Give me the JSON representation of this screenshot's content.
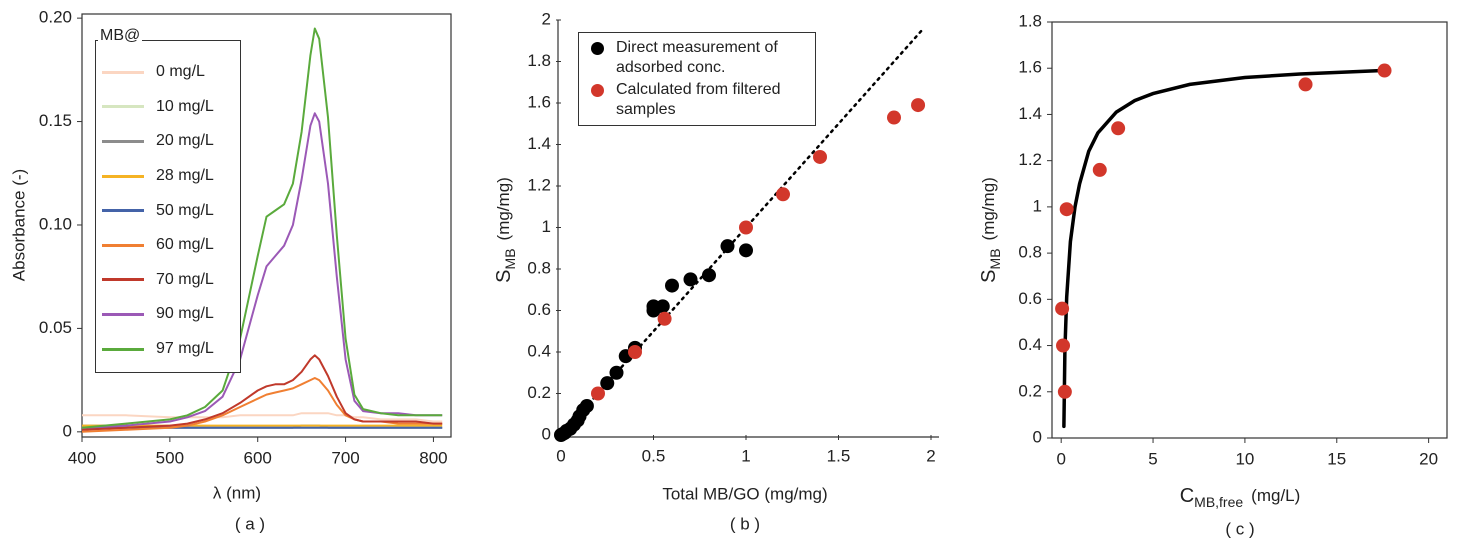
{
  "chart_data": [
    {
      "type": "line",
      "caption": "( a )",
      "xlabel": "λ (nm)",
      "ylabel": "Absorbance (-)",
      "legend_title": "MB@",
      "legend_position": "upper left",
      "frame": "box",
      "xlim": [
        400,
        820
      ],
      "xticks": [
        400,
        500,
        600,
        700,
        800
      ],
      "ylim": [
        -0.0025,
        0.202
      ],
      "yticks": [
        0,
        0.05,
        {
          "value": 0.1,
          "label": "0.10"
        },
        0.15,
        {
          "value": 0.2,
          "label": "0.20"
        }
      ],
      "x": [
        400,
        450,
        500,
        520,
        540,
        560,
        580,
        600,
        610,
        620,
        630,
        640,
        650,
        660,
        665,
        670,
        680,
        690,
        700,
        710,
        720,
        740,
        760,
        780,
        800,
        810
      ],
      "series": [
        {
          "name": "0 mg/L",
          "color": "#fbd6c2",
          "values": [
            0.008,
            0.008,
            0.007,
            0.007,
            0.007,
            0.007,
            0.008,
            0.008,
            0.008,
            0.008,
            0.008,
            0.008,
            0.009,
            0.009,
            0.009,
            0.009,
            0.009,
            0.008,
            0.008,
            0.007,
            0.007,
            0.006,
            0.006,
            0.006,
            0.005,
            0.005
          ]
        },
        {
          "name": "10 mg/L",
          "color": "#d6e6c0",
          "values": [
            0.002,
            0.002,
            0.002,
            0.002,
            0.002,
            0.002,
            0.002,
            0.002,
            0.002,
            0.002,
            0.002,
            0.002,
            0.002,
            0.002,
            0.002,
            0.002,
            0.002,
            0.002,
            0.002,
            0.002,
            0.002,
            0.002,
            0.002,
            0.002,
            0.002,
            0.002
          ]
        },
        {
          "name": "20 mg/L",
          "color": "#8c8c8c",
          "values": [
            0.003,
            0.003,
            0.002,
            0.002,
            0.002,
            0.002,
            0.002,
            0.002,
            0.002,
            0.002,
            0.002,
            0.002,
            0.003,
            0.003,
            0.003,
            0.003,
            0.002,
            0.002,
            0.002,
            0.002,
            0.002,
            0.002,
            0.002,
            0.002,
            0.002,
            0.002
          ]
        },
        {
          "name": "28 mg/L",
          "color": "#f5b324",
          "values": [
            0.003,
            0.003,
            0.003,
            0.003,
            0.003,
            0.003,
            0.003,
            0.003,
            0.003,
            0.003,
            0.003,
            0.003,
            0.003,
            0.003,
            0.003,
            0.003,
            0.003,
            0.003,
            0.003,
            0.003,
            0.003,
            0.003,
            0.003,
            0.003,
            0.003,
            0.003
          ]
        },
        {
          "name": "50 mg/L",
          "color": "#4463a8",
          "values": [
            0.002,
            0.002,
            0.002,
            0.002,
            0.002,
            0.002,
            0.002,
            0.002,
            0.002,
            0.002,
            0.002,
            0.002,
            0.002,
            0.002,
            0.002,
            0.002,
            0.002,
            0.002,
            0.002,
            0.002,
            0.002,
            0.002,
            0.002,
            0.002,
            0.002,
            0.002
          ]
        },
        {
          "name": "60 mg/L",
          "color": "#f07f32",
          "values": [
            0.0,
            0.001,
            0.002,
            0.003,
            0.005,
            0.008,
            0.012,
            0.016,
            0.018,
            0.019,
            0.02,
            0.021,
            0.023,
            0.025,
            0.026,
            0.025,
            0.02,
            0.013,
            0.008,
            0.006,
            0.005,
            0.005,
            0.004,
            0.004,
            0.004,
            0.004
          ]
        },
        {
          "name": "70 mg/L",
          "color": "#c0392b",
          "values": [
            0.001,
            0.002,
            0.003,
            0.004,
            0.006,
            0.009,
            0.014,
            0.02,
            0.022,
            0.023,
            0.023,
            0.025,
            0.029,
            0.035,
            0.037,
            0.035,
            0.027,
            0.017,
            0.009,
            0.006,
            0.005,
            0.005,
            0.005,
            0.005,
            0.004,
            0.004
          ]
        },
        {
          "name": "90 mg/L",
          "color": "#9b59b6",
          "values": [
            0.002,
            0.003,
            0.005,
            0.007,
            0.01,
            0.017,
            0.035,
            0.066,
            0.08,
            0.085,
            0.09,
            0.1,
            0.122,
            0.148,
            0.154,
            0.15,
            0.12,
            0.075,
            0.035,
            0.015,
            0.01,
            0.009,
            0.009,
            0.008,
            0.008,
            0.008
          ]
        },
        {
          "name": "97 mg/L",
          "color": "#5aaa3c",
          "values": [
            0.002,
            0.004,
            0.006,
            0.008,
            0.012,
            0.02,
            0.045,
            0.085,
            0.104,
            0.107,
            0.11,
            0.12,
            0.145,
            0.182,
            0.195,
            0.19,
            0.152,
            0.095,
            0.045,
            0.018,
            0.011,
            0.009,
            0.008,
            0.008,
            0.008,
            0.008
          ]
        }
      ]
    },
    {
      "type": "scatter",
      "caption": "( b )",
      "xlabel": "Total MB/GO (mg/mg)",
      "ylabel": {
        "text": "S",
        "sub": "MB",
        "unit": "(mg/mg)"
      },
      "legend_position": "upper left",
      "frame": "axes",
      "xlim": [
        0,
        2
      ],
      "xticks": [
        0,
        0.5,
        1,
        1.5,
        2
      ],
      "ylim": [
        0,
        2
      ],
      "yticks": [
        0,
        0.2,
        0.4,
        0.6,
        0.8,
        1,
        1.2,
        1.4,
        1.6,
        1.8,
        2
      ],
      "fit_line": {
        "x": [
          0,
          1.95
        ],
        "values": [
          0,
          1.95
        ],
        "color": "#000000",
        "style": "dotted"
      },
      "series": [
        {
          "name": "Direct measurement of adsorbed conc.",
          "color": "#000000",
          "x": [
            0,
            0.01,
            0.02,
            0.03,
            0.05,
            0.07,
            0.09,
            0.1,
            0.12,
            0.14,
            0.25,
            0.3,
            0.35,
            0.4,
            0.5,
            0.5,
            0.55,
            0.6,
            0.7,
            0.8,
            0.9,
            1.0
          ],
          "values": [
            0,
            0.005,
            0.01,
            0.02,
            0.03,
            0.05,
            0.07,
            0.09,
            0.12,
            0.14,
            0.25,
            0.3,
            0.38,
            0.42,
            0.6,
            0.62,
            0.62,
            0.72,
            0.75,
            0.77,
            0.91,
            0.89
          ]
        },
        {
          "name": "Calculated from filtered samples",
          "color": "#d2372b",
          "x": [
            0.2,
            0.4,
            0.56,
            1.0,
            1.2,
            1.4,
            1.8,
            1.93
          ],
          "values": [
            0.2,
            0.4,
            0.56,
            1.0,
            1.16,
            1.34,
            1.53,
            1.59
          ]
        }
      ]
    },
    {
      "type": "scatter",
      "caption": "( c )",
      "frame": "box",
      "xlabel": {
        "text": "C",
        "sub": "MB,free",
        "unit": "(mg/L)"
      },
      "ylabel": {
        "text": "S",
        "sub": "MB",
        "unit": "(mg/mg)"
      },
      "xlim": [
        -0.5,
        21
      ],
      "xticks": [
        0,
        5,
        10,
        15,
        20
      ],
      "ylim": [
        0,
        1.8
      ],
      "yticks": [
        0,
        0.2,
        0.4,
        0.6,
        0.8,
        1,
        1.2,
        1.4,
        1.6,
        1.8
      ],
      "fit_line": {
        "x": [
          0.15,
          0.2,
          0.3,
          0.5,
          0.75,
          1,
          1.5,
          2,
          3,
          4,
          5,
          7,
          10,
          13,
          17.5
        ],
        "values": [
          0.05,
          0.38,
          0.61,
          0.85,
          1.0,
          1.1,
          1.24,
          1.32,
          1.41,
          1.46,
          1.49,
          1.53,
          1.56,
          1.575,
          1.59
        ],
        "color": "#000000",
        "style": "solid"
      },
      "series": [
        {
          "color": "#d2372b",
          "x": [
            0.2,
            0.1,
            0.05,
            0.3,
            2.1,
            3.1,
            13.3,
            17.6
          ],
          "values": [
            0.2,
            0.4,
            0.56,
            0.99,
            1.16,
            1.34,
            1.53,
            1.59
          ]
        }
      ]
    }
  ]
}
